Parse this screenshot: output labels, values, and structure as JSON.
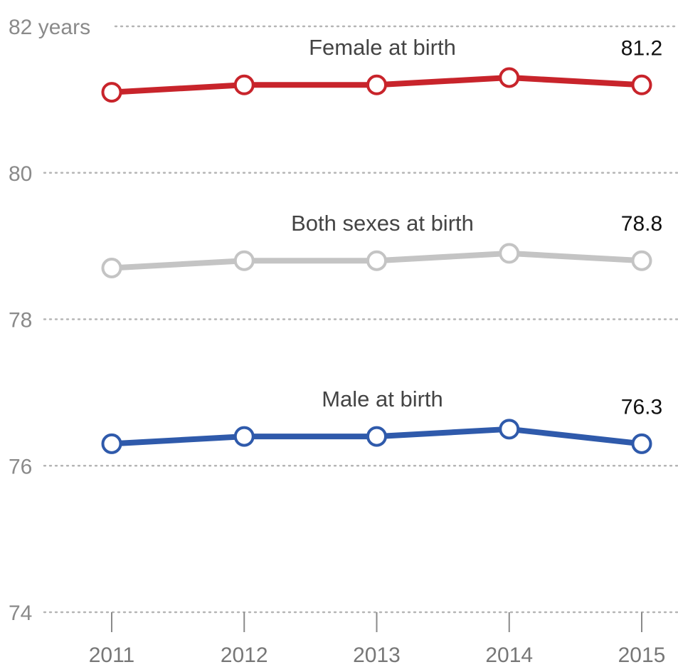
{
  "chart_data": {
    "type": "line",
    "x": [
      "2011",
      "2012",
      "2013",
      "2014",
      "2015"
    ],
    "ylim": [
      74,
      82
    ],
    "yticks": [
      {
        "value": 82,
        "label": "82 years"
      },
      {
        "value": 80,
        "label": "80"
      },
      {
        "value": 78,
        "label": "78"
      },
      {
        "value": 76,
        "label": "76"
      },
      {
        "value": 74,
        "label": "74"
      }
    ],
    "grid": true,
    "series": [
      {
        "name": "Female at birth",
        "color": "#c8242b",
        "values": [
          81.1,
          81.2,
          81.2,
          81.3,
          81.2
        ],
        "end_label": "81.2"
      },
      {
        "name": "Both sexes at birth",
        "color": "#c4c4c4",
        "values": [
          78.7,
          78.8,
          78.8,
          78.9,
          78.8
        ],
        "end_label": "78.8"
      },
      {
        "name": "Male at birth",
        "color": "#2f5aab",
        "values": [
          76.3,
          76.4,
          76.4,
          76.5,
          76.3
        ],
        "end_label": "76.3"
      }
    ]
  }
}
